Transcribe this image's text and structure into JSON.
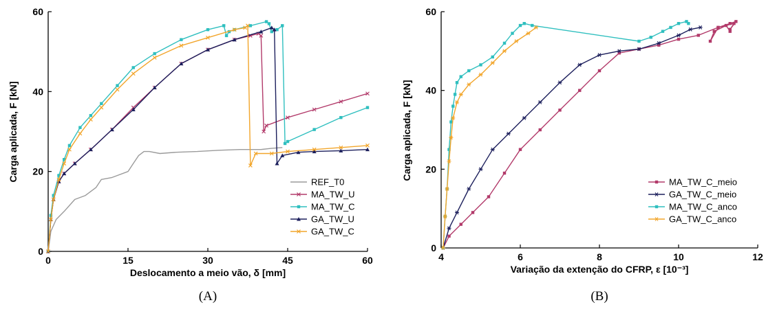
{
  "chart_data": [
    {
      "type": "line",
      "caption": "(A)",
      "xlabel": "Deslocamento a meio vão, δ [mm]",
      "ylabel": "Carga aplicada, F [kN]",
      "xlim": [
        0,
        60
      ],
      "ylim": [
        0,
        60
      ],
      "xticks": [
        0,
        15,
        30,
        45,
        60
      ],
      "yticks": [
        0,
        20,
        40,
        60
      ],
      "legend_position": "bottom-right",
      "series": [
        {
          "name": "REF_T0",
          "color": "#9a9a9a",
          "marker": "none",
          "x": [
            0,
            0.5,
            1.5,
            3,
            5,
            7,
            9,
            10,
            12,
            13,
            15,
            16,
            17,
            18,
            19,
            21,
            24,
            28,
            32,
            36,
            40,
            42,
            44
          ],
          "y": [
            0,
            5,
            8,
            10,
            13,
            14,
            16,
            18,
            18.5,
            19,
            20,
            22,
            24,
            25,
            25,
            24.5,
            24.8,
            25,
            25.3,
            25.5,
            25.5,
            25.8,
            26
          ]
        },
        {
          "name": "MA_TW_U",
          "color": "#b23a6a",
          "marker": "x",
          "x": [
            0,
            0.5,
            1,
            2,
            3,
            5,
            8,
            12,
            16,
            20,
            25,
            30,
            35,
            38,
            39.5,
            40,
            40.5,
            41,
            45,
            50,
            55,
            60
          ],
          "y": [
            0,
            8,
            13,
            17.5,
            19.5,
            22,
            25.5,
            30.5,
            36,
            41,
            47,
            50.5,
            53,
            54,
            54.5,
            54,
            30,
            31.5,
            33.5,
            35.5,
            37.5,
            39.5
          ]
        },
        {
          "name": "MA_TW_C",
          "color": "#2fbfbf",
          "marker": "square",
          "x": [
            0,
            0.5,
            1,
            2,
            3,
            4,
            6,
            8,
            10,
            13,
            16,
            20,
            25,
            30,
            33,
            33.5,
            34,
            35,
            38,
            41,
            41.5,
            42,
            43,
            44,
            44.5,
            45,
            50,
            55,
            60
          ],
          "y": [
            0,
            9,
            14,
            19,
            23,
            26.5,
            31,
            34,
            37,
            41.5,
            46,
            49.5,
            53,
            55.5,
            56.5,
            54,
            55,
            55.5,
            56.5,
            57.5,
            57,
            55,
            55.5,
            56.5,
            27,
            27.5,
            30.5,
            33.5,
            36
          ]
        },
        {
          "name": "GA_TW_U",
          "color": "#1c1f5c",
          "marker": "triangle",
          "x": [
            0,
            0.5,
            1,
            2,
            3,
            5,
            8,
            12,
            16,
            20,
            25,
            30,
            35,
            40,
            42,
            42.5,
            43,
            44,
            47,
            50,
            55,
            60
          ],
          "y": [
            0,
            8,
            13,
            17.5,
            19.5,
            22,
            25.5,
            30.5,
            35.5,
            41,
            47,
            50.5,
            53,
            55,
            56,
            55.5,
            22,
            24,
            24.8,
            25,
            25.2,
            25.5
          ]
        },
        {
          "name": "GA_TW_C",
          "color": "#f2a52a",
          "marker": "x",
          "x": [
            0,
            0.5,
            1,
            2,
            3,
            4,
            6,
            8,
            10,
            13,
            16,
            20,
            25,
            30,
            35,
            37,
            37.5,
            38,
            39,
            42,
            45,
            50,
            55,
            60
          ],
          "y": [
            0,
            8,
            13,
            18,
            22,
            25.5,
            29.5,
            33,
            36,
            40.5,
            44.5,
            48.5,
            51.5,
            53.5,
            55.5,
            56,
            56.5,
            21.5,
            24.5,
            24.5,
            25,
            25.5,
            26,
            26.5
          ]
        }
      ]
    },
    {
      "type": "line",
      "caption": "(B)",
      "xlabel": "Variação da extenção do CFRP, ε [10⁻³]",
      "ylabel": "Carga aplicada, F [kN]",
      "xlim": [
        4,
        12
      ],
      "ylim": [
        0,
        60
      ],
      "xticks": [
        4,
        6,
        8,
        10,
        12
      ],
      "yticks": [
        0,
        20,
        40,
        60
      ],
      "legend_position": "bottom-right",
      "series": [
        {
          "name": "MA_TW_C_meio",
          "color": "#b23a6a",
          "marker": "square",
          "x": [
            4.05,
            4.2,
            4.5,
            4.8,
            5.2,
            5.6,
            6,
            6.5,
            7,
            7.5,
            8,
            8.5,
            9,
            9.5,
            10,
            10.5,
            11,
            11.3,
            11.45,
            11.3,
            11.4,
            11.0,
            10.8,
            10.9,
            11.2,
            11.3
          ],
          "y": [
            0,
            3,
            6,
            9,
            13,
            19,
            25,
            30,
            35,
            40,
            45,
            49.5,
            50.5,
            51.5,
            53,
            54,
            56,
            57,
            57.5,
            55.5,
            57,
            56,
            52.5,
            55,
            56.5,
            55
          ]
        },
        {
          "name": "GA_TW_C_meio",
          "color": "#1c1f5c",
          "marker": "asterisk",
          "x": [
            4.05,
            4.2,
            4.4,
            4.7,
            5,
            5.3,
            5.7,
            6.1,
            6.5,
            7,
            7.5,
            8,
            8.5,
            9,
            9.5,
            10,
            10.3,
            10.55
          ],
          "y": [
            0,
            5,
            9,
            15,
            20,
            25,
            29,
            33,
            37,
            42,
            46.5,
            49,
            50,
            50.5,
            52,
            54,
            55.5,
            56
          ]
        },
        {
          "name": "MA_TW_C_anco",
          "color": "#2fbfbf",
          "marker": "square",
          "x": [
            4.05,
            4.1,
            4.15,
            4.2,
            4.25,
            4.3,
            4.35,
            4.4,
            4.5,
            4.7,
            5,
            5.3,
            5.6,
            5.8,
            6,
            6.1,
            6.3,
            9,
            9.3,
            9.6,
            9.8,
            10,
            10.2,
            10.25
          ],
          "y": [
            0,
            8,
            15,
            25,
            32,
            36,
            39,
            42,
            43.5,
            45,
            46.5,
            48.5,
            52,
            54.5,
            56.5,
            57,
            56.5,
            52.5,
            53.5,
            55,
            56,
            57,
            57.5,
            57
          ]
        },
        {
          "name": "GA_TW_C_anco",
          "color": "#f2a52a",
          "marker": "asterisk",
          "x": [
            4.05,
            4.1,
            4.15,
            4.2,
            4.25,
            4.3,
            4.4,
            4.5,
            4.7,
            5,
            5.3,
            5.6,
            5.9,
            6.2,
            6.4
          ],
          "y": [
            0,
            8,
            15,
            22,
            28,
            33,
            37,
            39,
            41.5,
            44,
            47,
            50,
            52.5,
            54.5,
            56
          ]
        }
      ]
    }
  ]
}
